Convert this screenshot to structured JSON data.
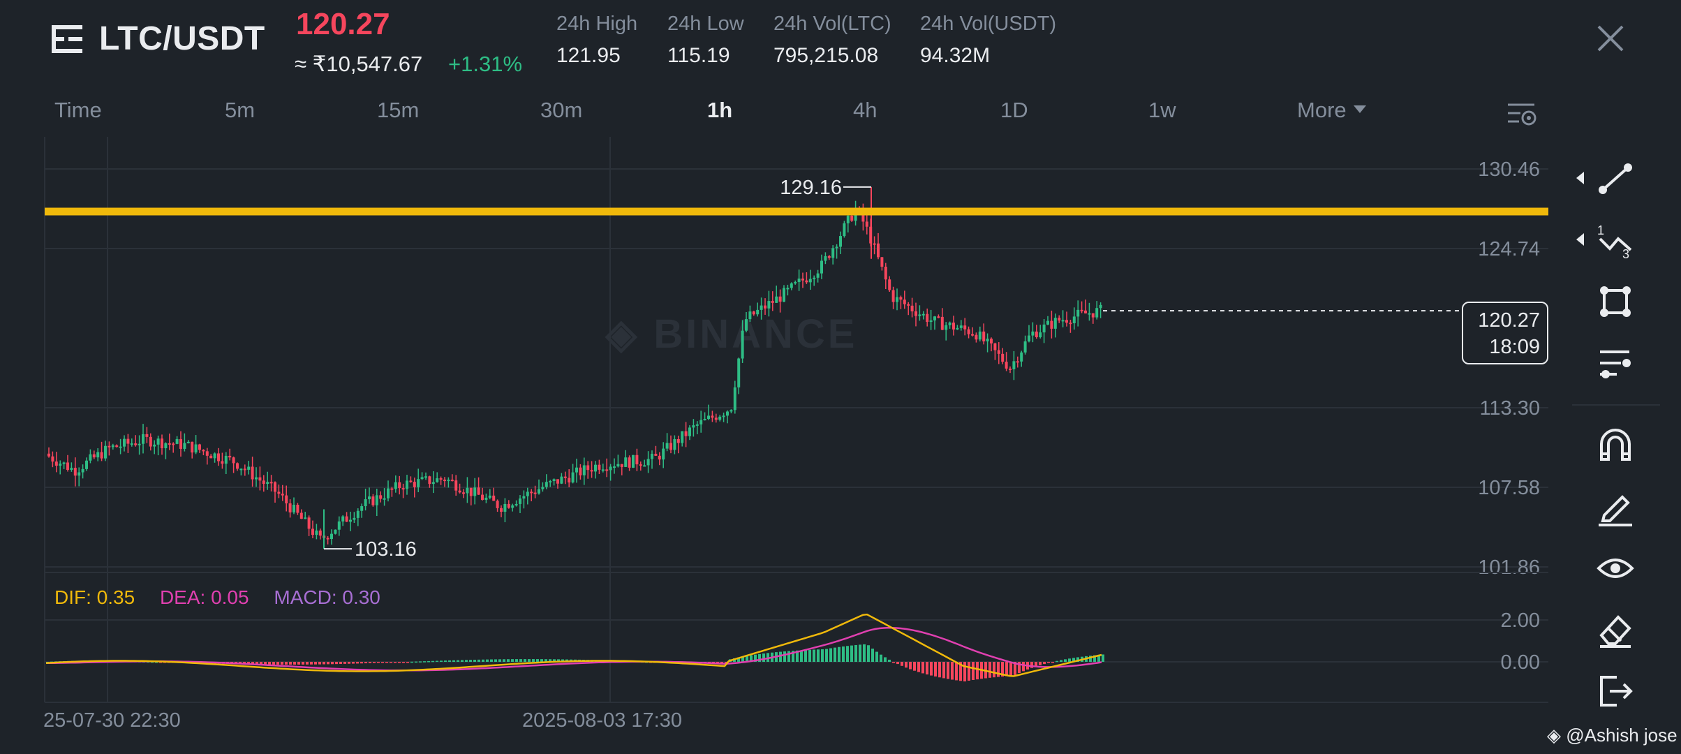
{
  "header": {
    "pair": "LTC/USDT",
    "last_price": "120.27",
    "price_inr": "≈ ₹10,547.67",
    "change_pct": "+1.31%",
    "stats": [
      {
        "label": "24h High",
        "value": "121.95"
      },
      {
        "label": "24h Low",
        "value": "115.19"
      },
      {
        "label": "24h Vol(LTC)",
        "value": "795,215.08"
      },
      {
        "label": "24h Vol(USDT)",
        "value": "94.32M"
      }
    ]
  },
  "intervals": [
    {
      "label": "Time",
      "active": false
    },
    {
      "label": "5m",
      "active": false
    },
    {
      "label": "15m",
      "active": false
    },
    {
      "label": "30m",
      "active": false
    },
    {
      "label": "1h",
      "active": true
    },
    {
      "label": "4h",
      "active": false
    },
    {
      "label": "1D",
      "active": false
    },
    {
      "label": "1w",
      "active": false
    },
    {
      "label": "More",
      "active": false
    }
  ],
  "chart": {
    "watermark": "BINANCE",
    "price_axis": [
      "130.46",
      "124.74",
      "113.30",
      "107.58",
      "101.86"
    ],
    "macd_axis": [
      "2.00",
      "0.00"
    ],
    "high_marker": "129.16",
    "low_marker": "103.16",
    "current_price": "120.27",
    "countdown": "18:09",
    "horizontal_line_price": 127.4,
    "time_labels": [
      "25-07-30 22:30",
      "2025-08-03 17:30"
    ],
    "macd": {
      "dif": "DIF: 0.35",
      "dea": "DEA: 0.05",
      "macd": "MACD: 0.30"
    }
  },
  "colors": {
    "up": "#2ebd85",
    "down": "#f6465d",
    "line": "#f0b90b",
    "dif": "#f0b90b",
    "dea": "#e040b0",
    "macd": "#a86fd4"
  },
  "tools": [
    "trend-line-icon",
    "fibonacci-icon",
    "rectangle-icon",
    "indicator-settings-icon",
    "magnet-icon",
    "pencil-icon",
    "eye-icon",
    "eraser-icon",
    "exit-icon"
  ],
  "credit": "@Ashish jose"
}
